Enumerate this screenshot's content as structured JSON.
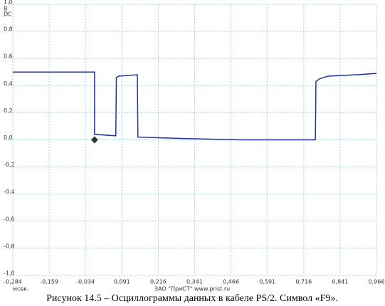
{
  "chart_data": {
    "type": "line",
    "y_unit": "В",
    "coupling": "DC",
    "x_unit": "мсек.",
    "vendor": "ЗАО \"ПриСТ\"   www.prist.ru",
    "caption": "Рисунок 14.5 – Осциллограммы  данных в кабеле PS/2. Символ «F9».",
    "xlim": [
      -0.284,
      0.966
    ],
    "ylim": [
      -1.0,
      1.0
    ],
    "xticks": [
      {
        "value": -0.284,
        "label": "-0,284"
      },
      {
        "value": -0.159,
        "label": "-0,159"
      },
      {
        "value": -0.034,
        "label": "-0,034"
      },
      {
        "value": 0.091,
        "label": "0,091"
      },
      {
        "value": 0.216,
        "label": "0,216"
      },
      {
        "value": 0.341,
        "label": "0,341"
      },
      {
        "value": 0.466,
        "label": "0,466"
      },
      {
        "value": 0.591,
        "label": "0,591"
      },
      {
        "value": 0.716,
        "label": "0,716"
      },
      {
        "value": 0.841,
        "label": "0,841"
      },
      {
        "value": 0.966,
        "label": "0,966"
      }
    ],
    "yticks": [
      {
        "value": 1.0,
        "label": "1,0"
      },
      {
        "value": 0.8,
        "label": "0,8"
      },
      {
        "value": 0.6,
        "label": "0,6"
      },
      {
        "value": 0.4,
        "label": "0,4"
      },
      {
        "value": 0.2,
        "label": "0,2"
      },
      {
        "value": 0.0,
        "label": "0,0"
      },
      {
        "value": -0.2,
        "label": "-0,2"
      },
      {
        "value": -0.4,
        "label": "-0,4"
      },
      {
        "value": -0.6,
        "label": "-0,6"
      },
      {
        "value": -0.8,
        "label": "-0,8"
      },
      {
        "value": -1.0,
        "label": "-1,0"
      }
    ],
    "grid": true,
    "series": [
      {
        "color": "#1f2fa8",
        "x": [
          -0.284,
          -0.003,
          -0.003,
          0.07,
          0.072,
          0.08,
          0.144,
          0.146,
          0.3,
          0.5,
          0.756,
          0.758,
          0.77,
          0.8,
          0.9,
          0.966
        ],
        "values": [
          0.5,
          0.5,
          0.04,
          0.03,
          0.46,
          0.47,
          0.48,
          0.02,
          0.01,
          0.0,
          0.0,
          0.43,
          0.45,
          0.47,
          0.48,
          0.49
        ]
      }
    ],
    "marker": {
      "x": -0.003,
      "y": 0.0,
      "color": "#333333"
    }
  }
}
